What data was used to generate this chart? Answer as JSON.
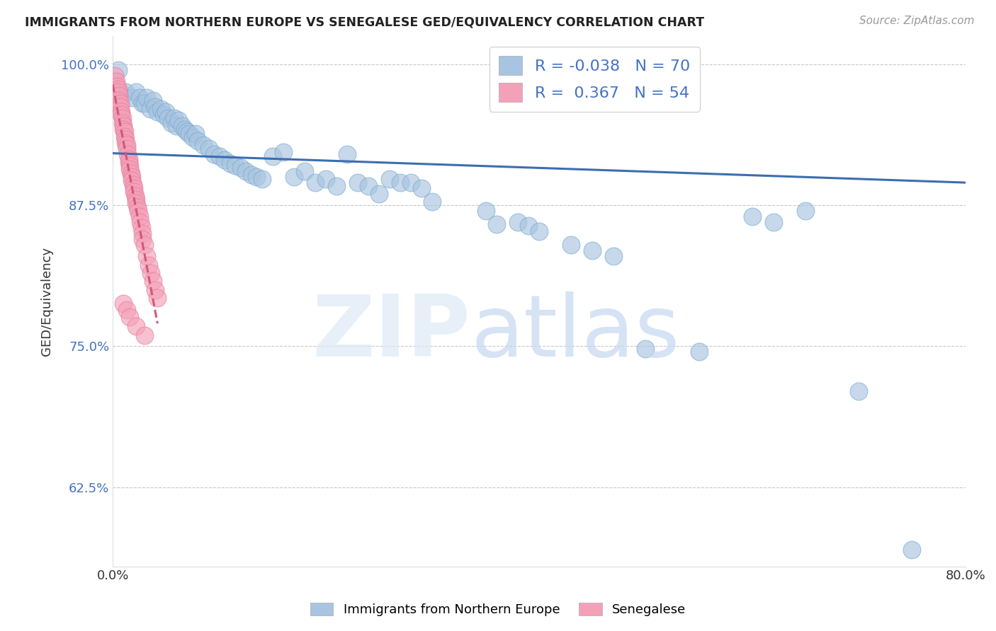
{
  "title": "IMMIGRANTS FROM NORTHERN EUROPE VS SENEGALESE GED/EQUIVALENCY CORRELATION CHART",
  "source": "Source: ZipAtlas.com",
  "ylabel": "GED/Equivalency",
  "xmin": 0.0,
  "xmax": 0.8,
  "ymin": 0.555,
  "ymax": 1.025,
  "yticks": [
    0.625,
    0.75,
    0.875,
    1.0
  ],
  "ytick_labels": [
    "62.5%",
    "75.0%",
    "87.5%",
    "100.0%"
  ],
  "xticks": [
    0.0,
    0.1,
    0.2,
    0.3,
    0.4,
    0.5,
    0.6,
    0.7,
    0.8
  ],
  "xtick_labels": [
    "0.0%",
    "",
    "",
    "",
    "",
    "",
    "",
    "",
    "80.0%"
  ],
  "blue_R": -0.038,
  "blue_N": 70,
  "pink_R": 0.367,
  "pink_N": 54,
  "blue_color": "#a8c4e0",
  "pink_color": "#f4a0b8",
  "blue_line_color": "#3c6db0",
  "pink_line_color": "#d05878",
  "blue_line_y0": 0.921,
  "blue_line_y1": 0.895,
  "blue_scatter_x": [
    0.005,
    0.012,
    0.018,
    0.022,
    0.025,
    0.028,
    0.03,
    0.032,
    0.035,
    0.038,
    0.04,
    0.042,
    0.045,
    0.048,
    0.05,
    0.052,
    0.055,
    0.058,
    0.06,
    0.062,
    0.065,
    0.068,
    0.07,
    0.072,
    0.075,
    0.078,
    0.08,
    0.085,
    0.09,
    0.095,
    0.1,
    0.105,
    0.11,
    0.115,
    0.12,
    0.125,
    0.13,
    0.135,
    0.14,
    0.15,
    0.16,
    0.17,
    0.18,
    0.19,
    0.2,
    0.21,
    0.22,
    0.23,
    0.24,
    0.25,
    0.26,
    0.27,
    0.28,
    0.29,
    0.3,
    0.35,
    0.36,
    0.38,
    0.39,
    0.4,
    0.43,
    0.45,
    0.47,
    0.5,
    0.55,
    0.6,
    0.62,
    0.65,
    0.7,
    0.75
  ],
  "blue_scatter_y": [
    0.995,
    0.975,
    0.97,
    0.975,
    0.97,
    0.965,
    0.965,
    0.97,
    0.96,
    0.968,
    0.962,
    0.958,
    0.96,
    0.955,
    0.958,
    0.952,
    0.948,
    0.952,
    0.945,
    0.95,
    0.945,
    0.942,
    0.94,
    0.938,
    0.935,
    0.938,
    0.932,
    0.928,
    0.925,
    0.92,
    0.918,
    0.915,
    0.912,
    0.91,
    0.908,
    0.905,
    0.902,
    0.9,
    0.898,
    0.918,
    0.922,
    0.9,
    0.905,
    0.895,
    0.898,
    0.892,
    0.92,
    0.895,
    0.892,
    0.885,
    0.898,
    0.895,
    0.895,
    0.89,
    0.878,
    0.87,
    0.858,
    0.86,
    0.857,
    0.852,
    0.84,
    0.835,
    0.83,
    0.748,
    0.745,
    0.865,
    0.86,
    0.87,
    0.71,
    0.57
  ],
  "pink_scatter_x": [
    0.002,
    0.003,
    0.004,
    0.005,
    0.005,
    0.006,
    0.006,
    0.007,
    0.007,
    0.008,
    0.008,
    0.009,
    0.009,
    0.01,
    0.01,
    0.011,
    0.011,
    0.012,
    0.012,
    0.013,
    0.013,
    0.014,
    0.015,
    0.015,
    0.016,
    0.016,
    0.017,
    0.018,
    0.018,
    0.019,
    0.02,
    0.02,
    0.021,
    0.022,
    0.022,
    0.023,
    0.024,
    0.025,
    0.026,
    0.027,
    0.028,
    0.028,
    0.03,
    0.032,
    0.034,
    0.036,
    0.038,
    0.04,
    0.042,
    0.01,
    0.013,
    0.016,
    0.022,
    0.03
  ],
  "pink_scatter_y": [
    0.99,
    0.985,
    0.98,
    0.978,
    0.975,
    0.972,
    0.968,
    0.965,
    0.962,
    0.958,
    0.955,
    0.952,
    0.948,
    0.945,
    0.942,
    0.94,
    0.936,
    0.933,
    0.93,
    0.928,
    0.925,
    0.92,
    0.916,
    0.913,
    0.91,
    0.907,
    0.903,
    0.9,
    0.897,
    0.893,
    0.89,
    0.887,
    0.883,
    0.88,
    0.877,
    0.873,
    0.87,
    0.865,
    0.86,
    0.855,
    0.85,
    0.845,
    0.84,
    0.83,
    0.822,
    0.815,
    0.808,
    0.8,
    0.793,
    0.788,
    0.782,
    0.776,
    0.768,
    0.76
  ],
  "pink_line_x0": 0.0,
  "pink_line_x1": 0.042
}
